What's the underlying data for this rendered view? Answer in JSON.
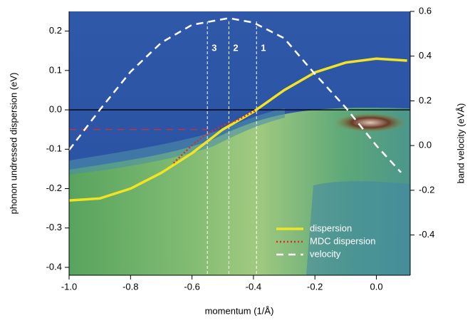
{
  "chart_data": {
    "type": "line",
    "x_label": "momentum (1/Å)",
    "y_label": "phonon undressed dispersion (eV)",
    "y2_label": "band velocity (eVÅ)",
    "xlim": [
      -1.0,
      0.11
    ],
    "xticks": [
      {
        "value": -1.0,
        "label": "-1.0"
      },
      -0.8,
      -0.6,
      -0.4,
      -0.2,
      {
        "value": 0,
        "label": "0.0"
      }
    ],
    "ylim": [
      -0.42,
      0.25
    ],
    "yticks": [
      -0.4,
      -0.3,
      -0.2,
      -0.1,
      {
        "value": 0,
        "label": "0.0"
      },
      0.1,
      0.2
    ],
    "y2lim": [
      -0.58,
      0.6
    ],
    "y2ticks": [
      -0.4,
      -0.2,
      {
        "value": 0,
        "label": "0.0"
      },
      0.2,
      0.4,
      0.6
    ],
    "legend": "lower right",
    "series": [
      {
        "name": "dispersion",
        "color": "#f2e422",
        "style": "solid",
        "axis": "y",
        "x": [
          -1.0,
          -0.9,
          -0.8,
          -0.7,
          -0.6,
          -0.55,
          -0.5,
          -0.4,
          -0.3,
          -0.2,
          -0.1,
          0.0,
          0.1
        ],
        "values": [
          -0.23,
          -0.225,
          -0.2,
          -0.16,
          -0.11,
          -0.08,
          -0.05,
          -0.005,
          0.05,
          0.095,
          0.12,
          0.13,
          0.125
        ]
      },
      {
        "name": "MDC dispersion",
        "color": "#d8301a",
        "style": "dotted",
        "axis": "y",
        "x": [
          -0.66,
          -0.6,
          -0.55,
          -0.5,
          -0.45,
          -0.39
        ],
        "values": [
          -0.135,
          -0.09,
          -0.06,
          -0.04,
          -0.025,
          0.0
        ]
      },
      {
        "name": "velocity",
        "color": "#ffffff",
        "style": "dashed",
        "axis": "y2",
        "x": [
          -1.0,
          -0.9,
          -0.8,
          -0.7,
          -0.6,
          -0.48,
          -0.4,
          -0.3,
          -0.2,
          -0.1,
          0.0,
          0.08
        ],
        "values": [
          -0.02,
          0.16,
          0.33,
          0.46,
          0.54,
          0.57,
          0.55,
          0.48,
          0.32,
          0.17,
          0.0,
          -0.12
        ]
      }
    ],
    "markers": [
      {
        "label": "3",
        "x": -0.55
      },
      {
        "label": "2",
        "x": -0.48
      },
      {
        "label": "1",
        "x": -0.39
      }
    ],
    "hlines": [
      {
        "y": 0,
        "color": "#000000",
        "style": "solid"
      },
      {
        "y": -0.05,
        "x_end": -0.55,
        "color": "#e03020",
        "style": "dashed"
      }
    ]
  }
}
